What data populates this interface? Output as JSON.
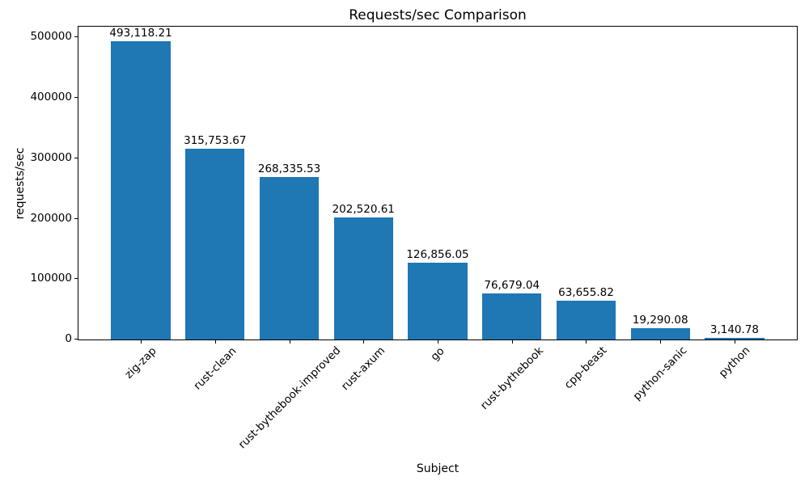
{
  "chart_data": {
    "type": "bar",
    "title": "Requests/sec Comparison",
    "xlabel": "Subject",
    "ylabel": "requests/sec",
    "categories": [
      "zig-zap",
      "rust-clean",
      "rust-bythebook-improved",
      "rust-axum",
      "go",
      "rust-bythebook",
      "cpp-beast",
      "python-sanic",
      "python"
    ],
    "values": [
      493118.21,
      315753.67,
      268335.53,
      202520.61,
      126856.05,
      76679.04,
      63655.82,
      19290.08,
      3140.78
    ],
    "value_labels": [
      "493,118.21",
      "315,753.67",
      "268,335.53",
      "202,520.61",
      "126,856.05",
      "76,679.04",
      "63,655.82",
      "19,290.08",
      "3,140.78"
    ],
    "yticks": [
      0,
      100000,
      200000,
      300000,
      400000,
      500000
    ],
    "ytick_labels": [
      "0",
      "100000",
      "200000",
      "300000",
      "400000",
      "500000"
    ],
    "ylim": [
      0,
      517774
    ],
    "xlim": [
      -0.84,
      8.84
    ],
    "bar_width_units": 0.8,
    "bar_color": "#1f77b4",
    "x_tick_rotation_deg": 45,
    "grid": false,
    "legend": null
  }
}
